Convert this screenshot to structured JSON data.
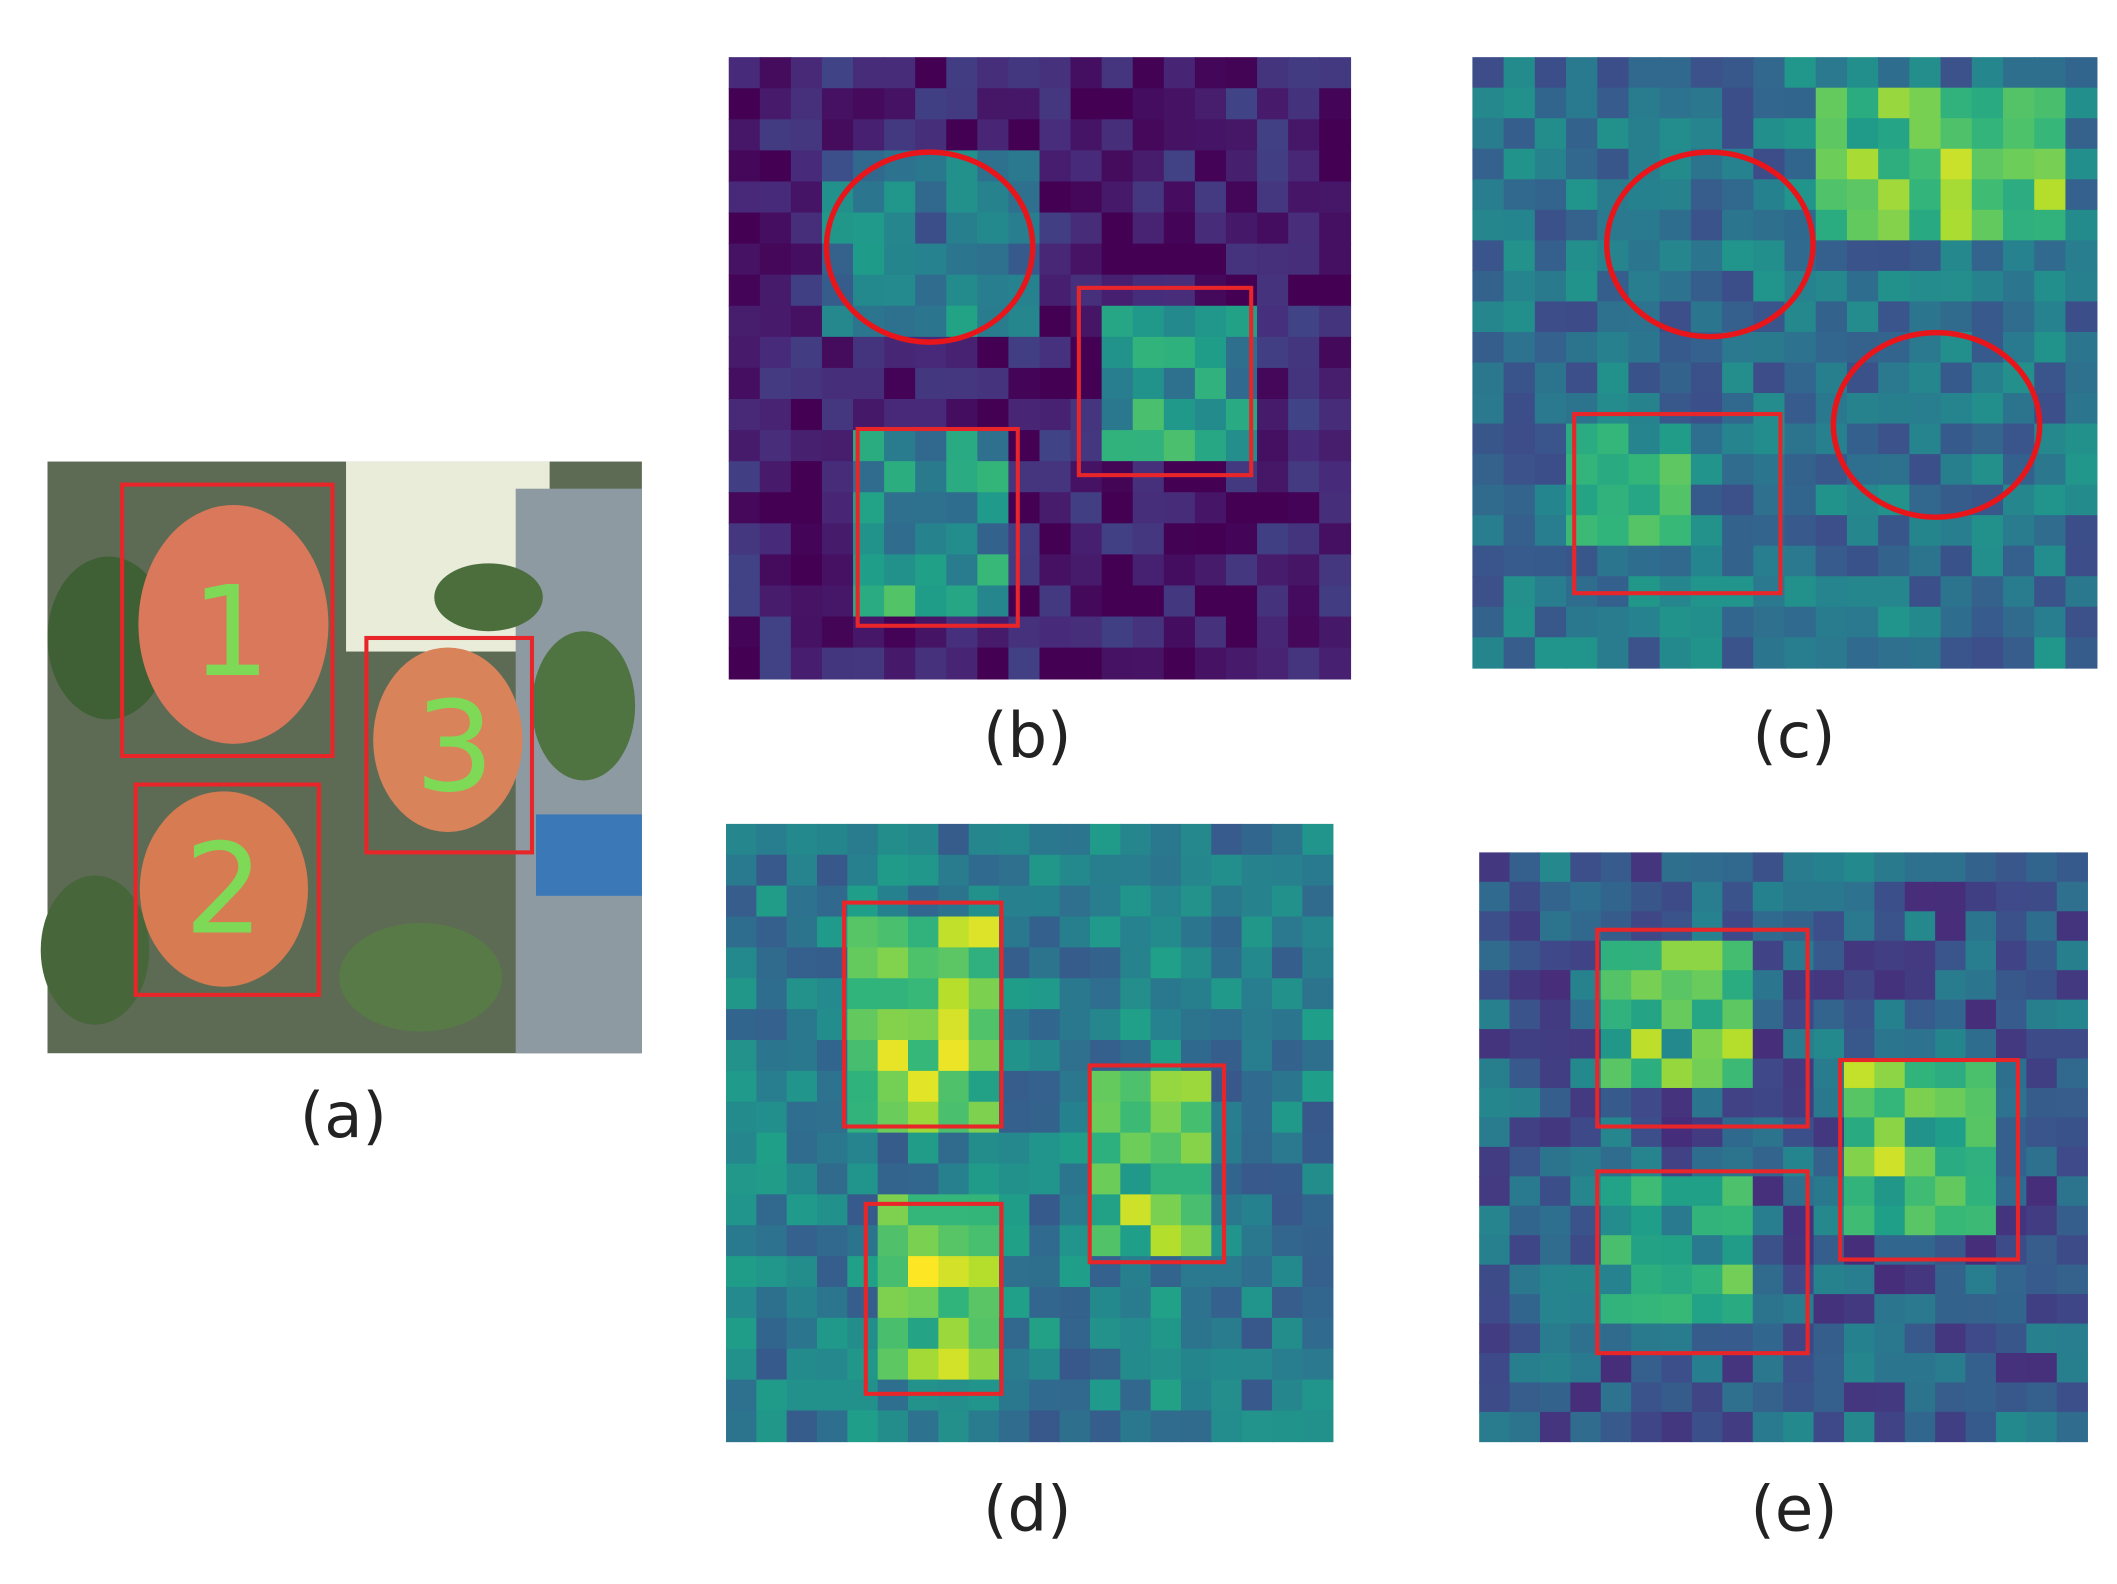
{
  "photo": {
    "box_labels": [
      "1",
      "2",
      "3"
    ]
  },
  "panels": [
    {
      "label": "(a)"
    },
    {
      "label": "(b)"
    },
    {
      "label": "(c)"
    },
    {
      "label": "(d)"
    },
    {
      "label": "(e)"
    }
  ]
}
